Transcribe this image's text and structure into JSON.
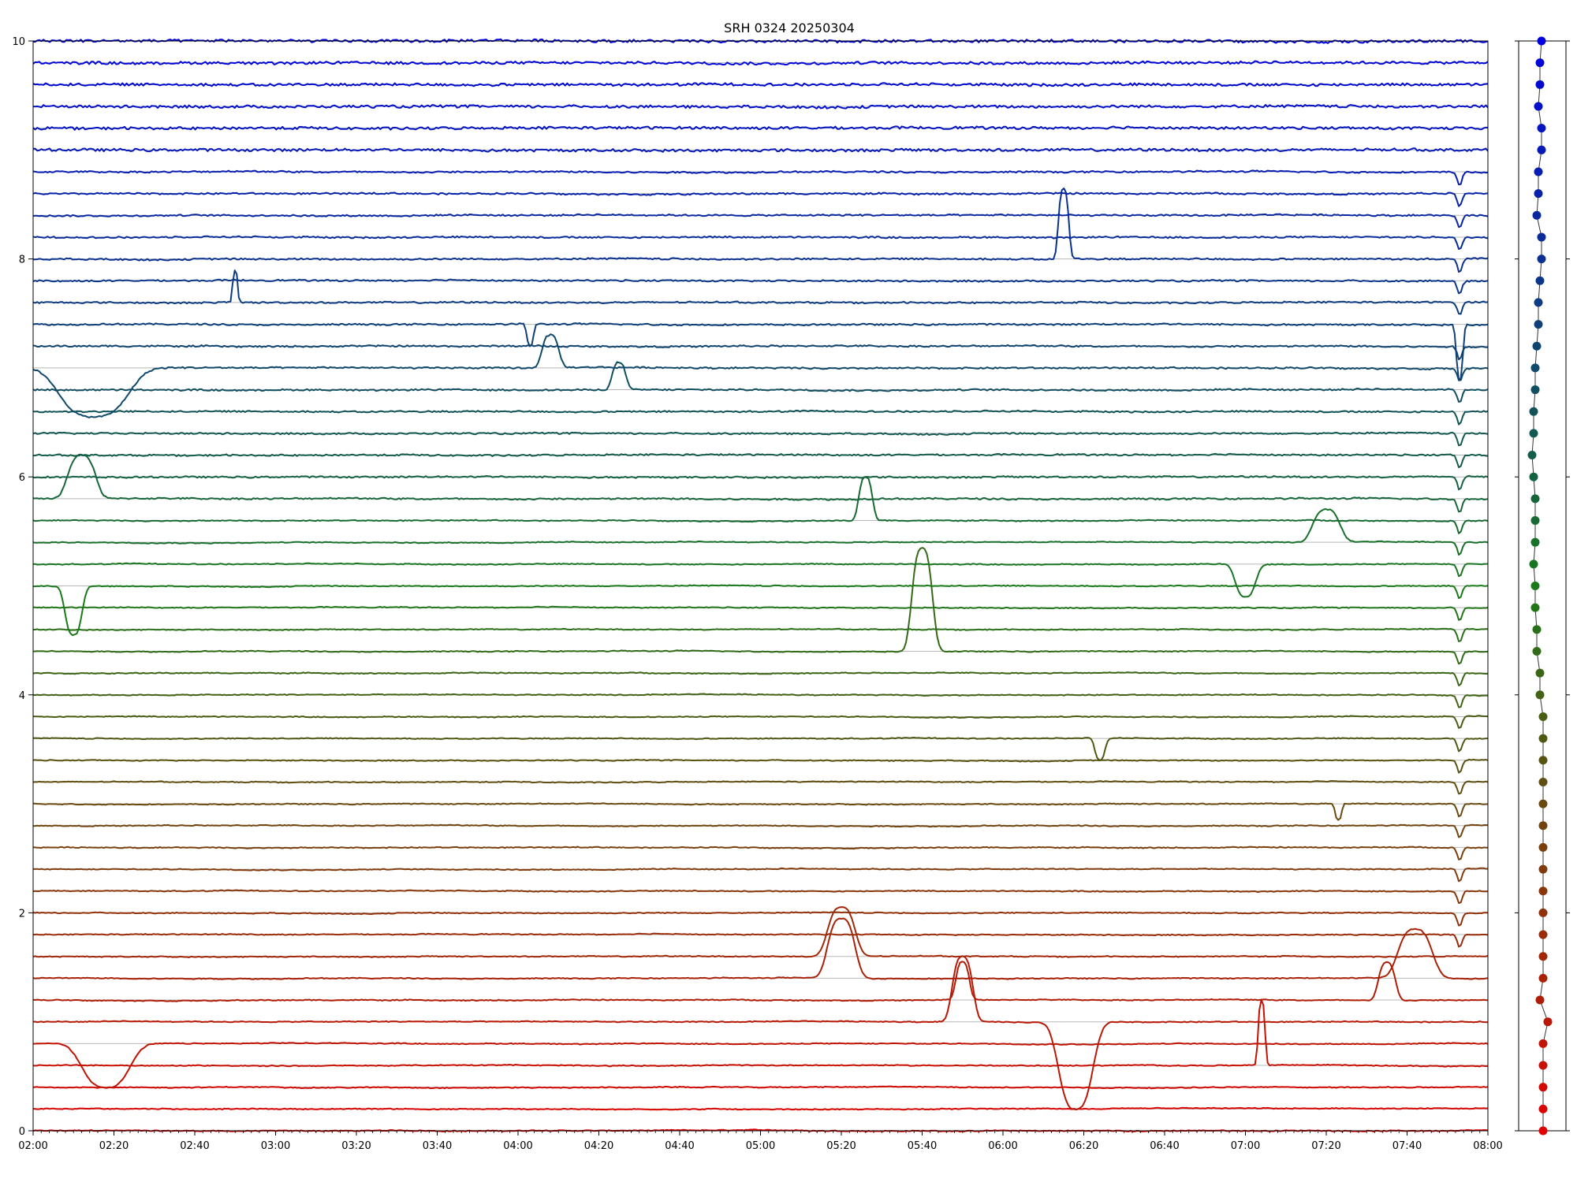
{
  "chart_data": {
    "type": "line",
    "title": "SRH 0324 20250304",
    "xlabel": "",
    "ylabel": "",
    "x_range": [
      "02:00",
      "08:00"
    ],
    "ylim": [
      0,
      10
    ],
    "grid": "horizontal baseline per channel",
    "x_ticks": [
      "02:00",
      "02:20",
      "02:40",
      "03:00",
      "03:20",
      "03:40",
      "04:00",
      "04:20",
      "04:40",
      "05:00",
      "05:20",
      "05:40",
      "06:00",
      "06:20",
      "06:40",
      "07:00",
      "07:20",
      "07:40",
      "08:00"
    ],
    "y_ticks": [
      "0",
      "2",
      "4",
      "6",
      "8",
      "10"
    ],
    "channel_count": 51,
    "channel_spacing": 0.2,
    "color_scale": {
      "bottom": "#e00000",
      "middle": "#1a7a1a",
      "top": "#0000e0"
    },
    "events": [
      {
        "channel": 40,
        "time": "06:15",
        "amplitude": 0.65,
        "width_min": 3
      },
      {
        "channel": 38,
        "time": "02:50",
        "amplitude": 0.3,
        "width_min": 1.5
      },
      {
        "channel": 37,
        "time": "04:03",
        "amplitude": -0.2,
        "width_min": 2
      },
      {
        "channel": 37,
        "time": "07:53",
        "amplitude": -0.4,
        "width_min": 2
      },
      {
        "channel": 35,
        "time": "02:15",
        "amplitude": -0.45,
        "width_min": 20
      },
      {
        "channel": 35,
        "time": "04:08",
        "amplitude": 0.3,
        "width_min": 5
      },
      {
        "channel": 34,
        "time": "04:25",
        "amplitude": 0.25,
        "width_min": 4
      },
      {
        "channel": 29,
        "time": "02:12",
        "amplitude": 0.4,
        "width_min": 8
      },
      {
        "channel": 28,
        "time": "05:26",
        "amplitude": 0.4,
        "width_min": 4
      },
      {
        "channel": 27,
        "time": "07:20",
        "amplitude": 0.3,
        "width_min": 8
      },
      {
        "channel": 26,
        "time": "07:00",
        "amplitude": -0.3,
        "width_min": 6
      },
      {
        "channel": 25,
        "time": "02:10",
        "amplitude": -0.45,
        "width_min": 5
      },
      {
        "channel": 22,
        "time": "05:40",
        "amplitude": 0.95,
        "width_min": 6
      },
      {
        "channel": 18,
        "time": "06:24",
        "amplitude": -0.2,
        "width_min": 3
      },
      {
        "channel": 15,
        "time": "07:23",
        "amplitude": -0.15,
        "width_min": 2
      },
      {
        "channel": 8,
        "time": "05:20",
        "amplitude": 0.45,
        "width_min": 8
      },
      {
        "channel": 7,
        "time": "05:20",
        "amplitude": 0.55,
        "width_min": 8
      },
      {
        "channel": 7,
        "time": "07:42",
        "amplitude": 0.45,
        "width_min": 10
      },
      {
        "channel": 6,
        "time": "07:35",
        "amplitude": 0.35,
        "width_min": 5
      },
      {
        "channel": 6,
        "time": "05:50",
        "amplitude": 0.35,
        "width_min": 4
      },
      {
        "channel": 5,
        "time": "06:18",
        "amplitude": -0.8,
        "width_min": 10
      },
      {
        "channel": 5,
        "time": "05:50",
        "amplitude": 0.6,
        "width_min": 6
      },
      {
        "channel": 4,
        "time": "02:18",
        "amplitude": -0.4,
        "width_min": 14
      },
      {
        "channel": 3,
        "time": "07:04",
        "amplitude": 0.6,
        "width_min": 2
      }
    ],
    "marker_offsets": [
      0,
      0,
      0,
      0,
      0,
      0.03,
      -0.02,
      0,
      0,
      0,
      0,
      0,
      0,
      0,
      0,
      0,
      0,
      0,
      0,
      0,
      -0.02,
      -0.02,
      -0.04,
      -0.04,
      -0.05,
      -0.05,
      -0.06,
      -0.05,
      -0.05,
      -0.05,
      -0.06,
      -0.07,
      -0.06,
      -0.06,
      -0.05,
      -0.05,
      -0.04,
      -0.03,
      -0.03,
      -0.02,
      -0.01,
      -0.01,
      -0.04,
      -0.03,
      -0.03,
      -0.01,
      -0.01,
      -0.03,
      -0.02,
      -0.02,
      -0.01
    ]
  }
}
